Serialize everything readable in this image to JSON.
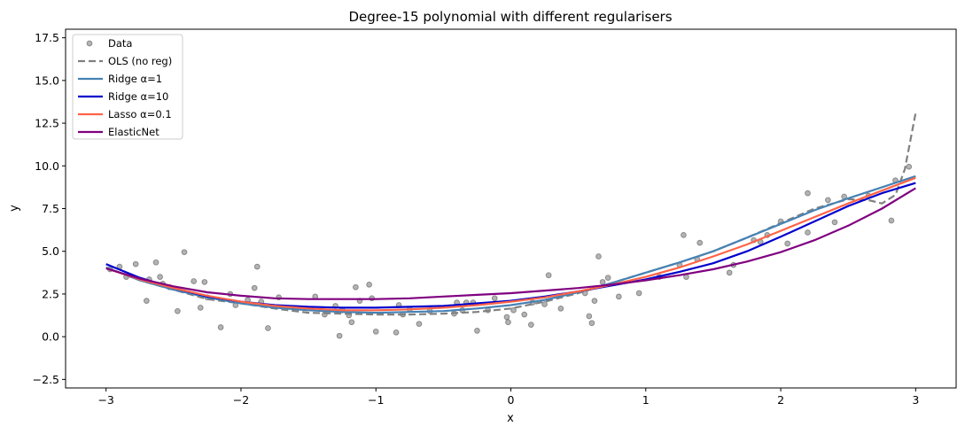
{
  "chart_data": {
    "type": "scatter",
    "title": "Degree-15 polynomial with different regularisers",
    "xlabel": "x",
    "ylabel": "y",
    "xlim": [
      -3.3,
      3.3
    ],
    "ylim": [
      -3.0,
      18.0
    ],
    "xticks": [
      -3,
      -2,
      -1,
      0,
      1,
      2,
      3
    ],
    "xtick_labels": [
      "−3",
      "−2",
      "−1",
      "0",
      "1",
      "2",
      "3"
    ],
    "yticks": [
      -2.5,
      0.0,
      2.5,
      5.0,
      7.5,
      10.0,
      12.5,
      15.0,
      17.5
    ],
    "ytick_labels": [
      "−2.5",
      "0.0",
      "2.5",
      "5.0",
      "7.5",
      "10.0",
      "12.5",
      "15.0",
      "17.5"
    ],
    "grid": false,
    "legend_position": "upper-left",
    "scatter": {
      "name": "Data",
      "color": "#808080",
      "points": [
        [
          -2.97,
          3.95
        ],
        [
          -2.9,
          4.1
        ],
        [
          -2.85,
          3.5
        ],
        [
          -2.78,
          4.25
        ],
        [
          -2.7,
          2.1
        ],
        [
          -2.68,
          3.35
        ],
        [
          -2.63,
          4.35
        ],
        [
          -2.6,
          3.5
        ],
        [
          -2.58,
          3.1
        ],
        [
          -2.53,
          2.9
        ],
        [
          -2.47,
          1.5
        ],
        [
          -2.42,
          4.95
        ],
        [
          -2.35,
          3.25
        ],
        [
          -2.3,
          1.7
        ],
        [
          -2.27,
          3.2
        ],
        [
          -2.25,
          2.3
        ],
        [
          -2.15,
          0.55
        ],
        [
          -2.08,
          2.5
        ],
        [
          -2.04,
          1.85
        ],
        [
          -1.95,
          2.15
        ],
        [
          -1.9,
          2.85
        ],
        [
          -1.88,
          4.1
        ],
        [
          -1.85,
          2.05
        ],
        [
          -1.8,
          0.5
        ],
        [
          -1.72,
          2.3
        ],
        [
          -1.45,
          2.35
        ],
        [
          -1.38,
          1.3
        ],
        [
          -1.3,
          1.8
        ],
        [
          -1.27,
          0.05
        ],
        [
          -1.25,
          1.55
        ],
        [
          -1.2,
          1.25
        ],
        [
          -1.18,
          0.85
        ],
        [
          -1.15,
          2.9
        ],
        [
          -1.12,
          2.1
        ],
        [
          -1.05,
          3.05
        ],
        [
          -1.03,
          2.25
        ],
        [
          -1.0,
          0.3
        ],
        [
          -0.85,
          0.25
        ],
        [
          -0.83,
          1.85
        ],
        [
          -0.8,
          1.3
        ],
        [
          -0.75,
          1.6
        ],
        [
          -0.68,
          0.75
        ],
        [
          -0.6,
          1.5
        ],
        [
          -0.42,
          1.35
        ],
        [
          -0.4,
          2.0
        ],
        [
          -0.36,
          1.55
        ],
        [
          -0.33,
          2.0
        ],
        [
          -0.28,
          2.0
        ],
        [
          -0.25,
          0.35
        ],
        [
          -0.17,
          1.55
        ],
        [
          -0.12,
          2.25
        ],
        [
          -0.03,
          1.15
        ],
        [
          -0.02,
          0.85
        ],
        [
          0.02,
          1.55
        ],
        [
          0.1,
          1.3
        ],
        [
          0.15,
          0.7
        ],
        [
          0.16,
          2.0
        ],
        [
          0.25,
          1.9
        ],
        [
          0.28,
          3.6
        ],
        [
          0.37,
          1.65
        ],
        [
          0.55,
          2.55
        ],
        [
          0.58,
          1.2
        ],
        [
          0.6,
          0.8
        ],
        [
          0.62,
          2.1
        ],
        [
          0.65,
          4.7
        ],
        [
          0.68,
          3.2
        ],
        [
          0.72,
          3.45
        ],
        [
          0.8,
          2.35
        ],
        [
          0.95,
          2.55
        ],
        [
          1.1,
          3.5
        ],
        [
          1.25,
          4.2
        ],
        [
          1.28,
          5.95
        ],
        [
          1.3,
          3.5
        ],
        [
          1.38,
          4.55
        ],
        [
          1.4,
          5.5
        ],
        [
          1.62,
          3.75
        ],
        [
          1.65,
          4.2
        ],
        [
          1.8,
          5.65
        ],
        [
          1.85,
          5.55
        ],
        [
          1.9,
          5.95
        ],
        [
          2.0,
          6.75
        ],
        [
          2.05,
          5.45
        ],
        [
          2.2,
          8.4
        ],
        [
          2.2,
          6.1
        ],
        [
          2.35,
          8.0
        ],
        [
          2.4,
          6.7
        ],
        [
          2.47,
          8.2
        ],
        [
          2.65,
          8.25
        ],
        [
          2.82,
          6.8
        ],
        [
          2.85,
          9.15
        ],
        [
          2.95,
          9.95
        ]
      ]
    },
    "series": [
      {
        "name": "OLS (no reg)",
        "color": "#808080",
        "style": "dashed",
        "x": [
          -3.0,
          -2.75,
          -2.5,
          -2.25,
          -2.0,
          -1.75,
          -1.5,
          -1.25,
          -1.0,
          -0.75,
          -0.5,
          -0.25,
          0.0,
          0.25,
          0.5,
          0.75,
          1.0,
          1.25,
          1.5,
          1.75,
          2.0,
          2.25,
          2.5,
          2.65,
          2.75,
          2.85,
          2.92,
          3.0
        ],
        "y": [
          4.05,
          3.3,
          2.75,
          2.2,
          1.95,
          1.65,
          1.4,
          1.35,
          1.3,
          1.3,
          1.35,
          1.45,
          1.65,
          2.05,
          2.55,
          3.15,
          3.75,
          4.35,
          5.0,
          5.8,
          6.65,
          7.5,
          8.05,
          8.0,
          7.8,
          8.3,
          9.8,
          13.1
        ]
      },
      {
        "name": "Ridge α=1",
        "color": "#4682b4",
        "style": "solid",
        "x": [
          -3.0,
          -2.75,
          -2.5,
          -2.25,
          -2.0,
          -1.75,
          -1.5,
          -1.25,
          -1.0,
          -0.75,
          -0.5,
          -0.25,
          0.0,
          0.25,
          0.5,
          0.75,
          1.0,
          1.25,
          1.5,
          1.75,
          2.0,
          2.25,
          2.5,
          2.75,
          3.0
        ],
        "y": [
          4.05,
          3.3,
          2.75,
          2.3,
          1.95,
          1.7,
          1.55,
          1.45,
          1.4,
          1.45,
          1.5,
          1.65,
          1.85,
          2.15,
          2.6,
          3.15,
          3.75,
          4.35,
          5.0,
          5.8,
          6.6,
          7.4,
          8.1,
          8.75,
          9.4
        ]
      },
      {
        "name": "Ridge α=10",
        "color": "#0000cd",
        "style": "solid",
        "x": [
          -3.0,
          -2.75,
          -2.5,
          -2.25,
          -2.0,
          -1.75,
          -1.5,
          -1.25,
          -1.0,
          -0.75,
          -0.5,
          -0.25,
          0.0,
          0.25,
          0.5,
          0.75,
          1.0,
          1.25,
          1.5,
          1.75,
          2.0,
          2.25,
          2.5,
          2.75,
          3.0
        ],
        "y": [
          4.25,
          3.45,
          2.85,
          2.35,
          2.05,
          1.85,
          1.75,
          1.7,
          1.7,
          1.75,
          1.8,
          1.95,
          2.1,
          2.35,
          2.65,
          3.0,
          3.35,
          3.8,
          4.3,
          5.0,
          5.85,
          6.75,
          7.65,
          8.4,
          9.0
        ]
      },
      {
        "name": "Lasso α=0.1",
        "color": "#ff6347",
        "style": "solid",
        "x": [
          -3.0,
          -2.75,
          -2.5,
          -2.25,
          -2.0,
          -1.75,
          -1.5,
          -1.25,
          -1.0,
          -0.75,
          -0.5,
          -0.25,
          0.0,
          0.25,
          0.5,
          0.75,
          1.0,
          1.25,
          1.5,
          1.75,
          2.0,
          2.25,
          2.5,
          2.75,
          3.0
        ],
        "y": [
          4.0,
          3.35,
          2.85,
          2.4,
          2.05,
          1.8,
          1.65,
          1.55,
          1.55,
          1.6,
          1.7,
          1.85,
          2.05,
          2.3,
          2.65,
          3.05,
          3.5,
          4.05,
          4.7,
          5.4,
          6.2,
          7.0,
          7.8,
          8.55,
          9.3
        ]
      },
      {
        "name": "ElasticNet",
        "color": "#800080",
        "style": "solid",
        "x": [
          -3.0,
          -2.75,
          -2.5,
          -2.25,
          -2.0,
          -1.75,
          -1.5,
          -1.25,
          -1.0,
          -0.75,
          -0.5,
          -0.25,
          0.0,
          0.25,
          0.5,
          0.75,
          1.0,
          1.25,
          1.5,
          1.75,
          2.0,
          2.25,
          2.5,
          2.75,
          3.0
        ],
        "y": [
          4.0,
          3.4,
          2.95,
          2.6,
          2.4,
          2.25,
          2.2,
          2.2,
          2.2,
          2.25,
          2.35,
          2.45,
          2.55,
          2.7,
          2.85,
          3.05,
          3.3,
          3.6,
          3.95,
          4.4,
          4.95,
          5.65,
          6.5,
          7.5,
          8.7
        ]
      }
    ]
  }
}
